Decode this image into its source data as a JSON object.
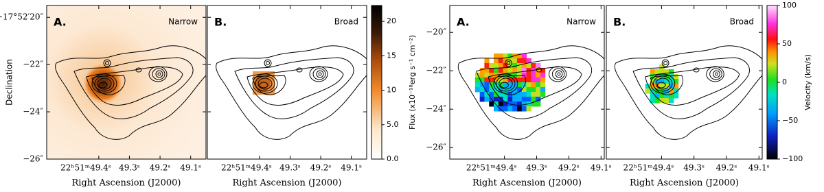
{
  "figures": [
    {
      "y_label": "Declination",
      "x_label": "Right Ascension (J2000)",
      "xlim": [
        49.57,
        49.05
      ],
      "xticks": [
        {
          "value": 49.4,
          "label": "22ʰ51ᵐ49.4ˢ"
        },
        {
          "value": 49.3,
          "label": "49.3ˢ"
        },
        {
          "value": 49.2,
          "label": "49.2ˢ"
        },
        {
          "value": 49.1,
          "label": "49.1ˢ"
        }
      ],
      "ylim": [
        19.5,
        26.0
      ],
      "yticks": [
        {
          "value": 20,
          "label": "−17°52′20″"
        },
        {
          "value": 22,
          "label": "−22″"
        },
        {
          "value": 24,
          "label": "−24″"
        },
        {
          "value": 26,
          "label": "−26″"
        }
      ],
      "panels": [
        {
          "label": "A.",
          "line": "Narrow"
        },
        {
          "label": "B.",
          "line": "Broad"
        }
      ],
      "colorbar": {
        "label": "Flux (x10⁻¹⁸erg s⁻¹ cm⁻²)",
        "colormap": "flux",
        "clim": [
          0,
          22.3
        ],
        "ticks": [
          {
            "value": 0,
            "label": "0.0"
          },
          {
            "value": 5,
            "label": "5.0"
          },
          10,
          15,
          20
        ]
      }
    },
    {
      "x_label": "Right Ascension (J2000)",
      "xlim": [
        49.57,
        49.09
      ],
      "xticks": [
        {
          "value": 49.4,
          "label": "22ʰ51ᵐ49.4ˢ"
        },
        {
          "value": 49.3,
          "label": "49.3ˢ"
        },
        {
          "value": 49.2,
          "label": "49.2ˢ"
        },
        {
          "value": 49.1,
          "label": "49.1ˢ"
        }
      ],
      "ylim": [
        18.6,
        26.6
      ],
      "yticks": [
        {
          "value": 20,
          "label": "−20″"
        },
        {
          "value": 22,
          "label": "−22″"
        },
        {
          "value": 24,
          "label": "−24″"
        },
        {
          "value": 26,
          "label": "−26″"
        }
      ],
      "panels": [
        {
          "label": "A.",
          "line": "Narrow"
        },
        {
          "label": "B.",
          "line": "Broad"
        }
      ],
      "colorbar": {
        "label": "Velocity (km/s)",
        "colormap": "velocity",
        "clim": [
          -100,
          100
        ],
        "ticks": [
          {
            "value": 100,
            "label": "100"
          },
          {
            "value": 50,
            "label": "50"
          },
          {
            "value": 0,
            "label": "0"
          },
          {
            "value": -50,
            "label": "−50"
          },
          {
            "value": -100,
            "label": "−100"
          }
        ]
      }
    }
  ]
}
